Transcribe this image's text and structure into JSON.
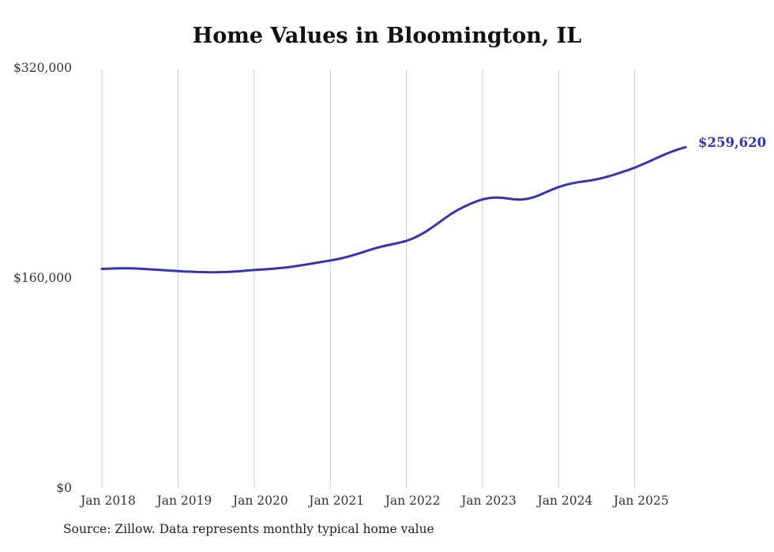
{
  "title": "Home Values in Bloomington, IL",
  "source_note": "Source: Zillow. Data represents monthly typical home value",
  "colors": {
    "line": "#3633b7",
    "grid": "#cccccc",
    "tick_label": "#333333",
    "end_label": "#3633b7",
    "title": "#111111",
    "background": "#ffffff"
  },
  "chart_data": {
    "type": "line",
    "title": "Home Values in Bloomington, IL",
    "xlabel": "",
    "ylabel": "",
    "ylim": [
      0,
      320000
    ],
    "grid": "vertical-only",
    "legend": "none",
    "y_tick_labels": [
      "$0",
      "$160,000",
      "$320,000"
    ],
    "y_tick_values": [
      0,
      160000,
      320000
    ],
    "x_tick_labels": [
      "Jan 2018",
      "Jan 2019",
      "Jan 2020",
      "Jan 2021",
      "Jan 2022",
      "Jan 2023",
      "Jan 2024",
      "Jan 2025"
    ],
    "final_value_label": "$259,620",
    "x": [
      "2018-01",
      "2018-02",
      "2018-03",
      "2018-04",
      "2018-05",
      "2018-06",
      "2018-07",
      "2018-08",
      "2018-09",
      "2018-10",
      "2018-11",
      "2018-12",
      "2019-01",
      "2019-02",
      "2019-03",
      "2019-04",
      "2019-05",
      "2019-06",
      "2019-07",
      "2019-08",
      "2019-09",
      "2019-10",
      "2019-11",
      "2019-12",
      "2020-01",
      "2020-02",
      "2020-03",
      "2020-04",
      "2020-05",
      "2020-06",
      "2020-07",
      "2020-08",
      "2020-09",
      "2020-10",
      "2020-11",
      "2020-12",
      "2021-01",
      "2021-02",
      "2021-03",
      "2021-04",
      "2021-05",
      "2021-06",
      "2021-07",
      "2021-08",
      "2021-09",
      "2021-10",
      "2021-11",
      "2021-12",
      "2022-01",
      "2022-02",
      "2022-03",
      "2022-04",
      "2022-05",
      "2022-06",
      "2022-07",
      "2022-08",
      "2022-09",
      "2022-10",
      "2022-11",
      "2022-12",
      "2023-01",
      "2023-02",
      "2023-03",
      "2023-04",
      "2023-05",
      "2023-06",
      "2023-07",
      "2023-08",
      "2023-09",
      "2023-10",
      "2023-11",
      "2023-12",
      "2024-01",
      "2024-02",
      "2024-03",
      "2024-04",
      "2024-05",
      "2024-06",
      "2024-07",
      "2024-08",
      "2024-09",
      "2024-10",
      "2024-11",
      "2024-12",
      "2025-01",
      "2025-02",
      "2025-03",
      "2025-04",
      "2025-05",
      "2025-06",
      "2025-07",
      "2025-08",
      "2025-09"
    ],
    "series": [
      {
        "name": "Typical home value",
        "values": [
          166900,
          167100,
          167300,
          167400,
          167400,
          167300,
          167100,
          166800,
          166500,
          166200,
          165900,
          165600,
          165300,
          165000,
          164800,
          164600,
          164500,
          164400,
          164400,
          164500,
          164700,
          165000,
          165300,
          165700,
          166100,
          166400,
          166700,
          167100,
          167500,
          168000,
          168600,
          169300,
          170100,
          170900,
          171700,
          172500,
          173300,
          174200,
          175300,
          176500,
          177900,
          179400,
          181000,
          182500,
          183800,
          184900,
          185900,
          187000,
          188300,
          190100,
          192400,
          195100,
          198300,
          201800,
          205300,
          208600,
          211600,
          214100,
          216300,
          218300,
          219900,
          220900,
          221300,
          221100,
          220500,
          219900,
          219700,
          220200,
          221400,
          223200,
          225300,
          227400,
          229300,
          230800,
          232000,
          232900,
          233600,
          234300,
          235200,
          236300,
          237600,
          239100,
          240700,
          242300,
          244100,
          246100,
          248200,
          250400,
          252600,
          254700,
          256600,
          258200,
          259620
        ]
      }
    ]
  }
}
